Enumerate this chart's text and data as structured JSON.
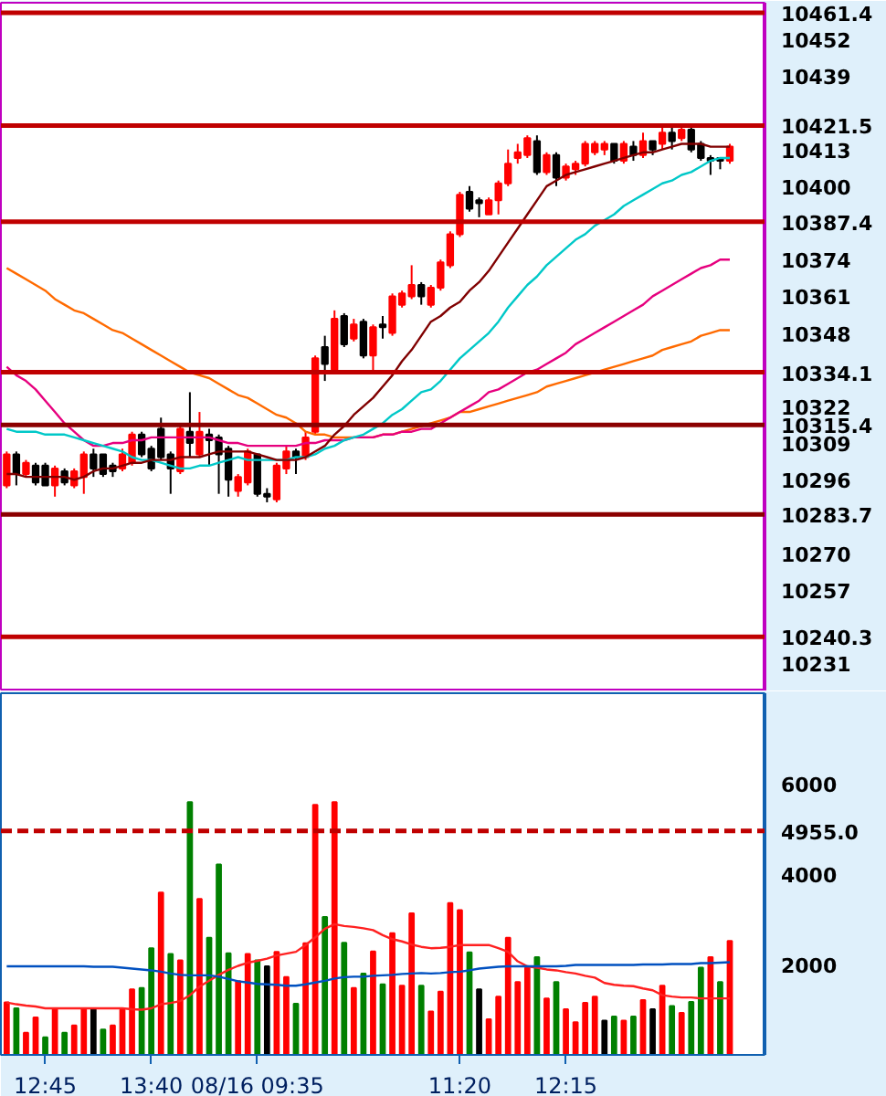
{
  "chart_data": [
    {
      "type": "candlestick",
      "categories": [
        null,
        null,
        null,
        null,
        null,
        null,
        null,
        null,
        null,
        null,
        null,
        null,
        null,
        null,
        null,
        null,
        null,
        null,
        null,
        null,
        null,
        null,
        null,
        null,
        null,
        null,
        null,
        null,
        null,
        null,
        null,
        null,
        null,
        null,
        null,
        null,
        null,
        null,
        null,
        null,
        null,
        null,
        null,
        null,
        null,
        null,
        null,
        null,
        null,
        null,
        null,
        null,
        null,
        null,
        null,
        null,
        null,
        null,
        null,
        null,
        null,
        null,
        null,
        null,
        null,
        null,
        null,
        null,
        null,
        null,
        null,
        null,
        null,
        null,
        null,
        null
      ],
      "ohlc": [
        [
          10294,
          10306,
          10293,
          10305
        ],
        [
          10305,
          10306,
          10294,
          10298
        ],
        [
          10298,
          10303,
          10297,
          10302
        ],
        [
          10301,
          10302,
          10294,
          10295
        ],
        [
          10301,
          10302,
          10294,
          10294
        ],
        [
          10294,
          10301,
          10290,
          10300
        ],
        [
          10299,
          10300,
          10294,
          10295
        ],
        [
          10294,
          10300,
          10293,
          10299
        ],
        [
          10297,
          10306,
          10291,
          10305
        ],
        [
          10305,
          10307,
          10297,
          10300
        ],
        [
          10305,
          10305,
          10297,
          10298
        ],
        [
          10301,
          10302,
          10297,
          10299
        ],
        [
          10300,
          10307,
          10299,
          10305
        ],
        [
          10302,
          10313,
          10301,
          10312
        ],
        [
          10312,
          10313,
          10304,
          10305
        ],
        [
          10307,
          10308,
          10299,
          10300
        ],
        [
          10314,
          10318,
          10303,
          10304
        ],
        [
          10305,
          10306,
          10291,
          10300
        ],
        [
          10299,
          10315,
          10298,
          10314
        ],
        [
          10313,
          10327,
          10304,
          10309
        ],
        [
          10305,
          10320,
          10304,
          10313
        ],
        [
          10312,
          10314,
          10301,
          10310
        ],
        [
          10311,
          10312,
          10291,
          10305
        ],
        [
          10307,
          10308,
          10290,
          10296
        ],
        [
          10292,
          10298,
          10290,
          10297
        ],
        [
          10295,
          10307,
          10294,
          10306
        ],
        [
          10305,
          10305,
          10290,
          10291
        ],
        [
          10291,
          10293,
          10288,
          10290
        ],
        [
          10289,
          10302,
          10288,
          10301
        ],
        [
          10300,
          10308,
          10298,
          10306
        ],
        [
          10306,
          10307,
          10298,
          10304
        ],
        [
          10304,
          10313,
          10303,
          10311
        ],
        [
          10313,
          10340,
          10312,
          10339
        ],
        [
          10343,
          10347,
          10331,
          10337
        ],
        [
          10335,
          10356,
          10334,
          10353
        ],
        [
          10354,
          10355,
          10343,
          10344
        ],
        [
          10346,
          10353,
          10345,
          10351
        ],
        [
          10352,
          10353,
          10339,
          10340
        ],
        [
          10340,
          10351,
          10334,
          10350
        ],
        [
          10351,
          10354,
          10346,
          10350
        ],
        [
          10348,
          10362,
          10347,
          10361
        ],
        [
          10358,
          10363,
          10357,
          10362
        ],
        [
          10361,
          10372,
          10360,
          10365
        ],
        [
          10365,
          10366,
          10358,
          10361
        ],
        [
          10358,
          10365,
          10357,
          10364
        ],
        [
          10364,
          10374,
          10363,
          10373
        ],
        [
          10372,
          10384,
          10371,
          10383
        ],
        [
          10383,
          10398,
          10382,
          10397
        ],
        [
          10398,
          10400,
          10391,
          10392
        ],
        [
          10395,
          10396,
          10389,
          10394
        ],
        [
          10390,
          10396,
          10390,
          10395
        ],
        [
          10395,
          10402,
          10390,
          10401
        ],
        [
          10401,
          10413,
          10400,
          10408
        ],
        [
          10410,
          10415,
          10408,
          10412
        ],
        [
          10411,
          10418,
          10410,
          10417
        ],
        [
          10416,
          10418,
          10404,
          10405
        ],
        [
          10405,
          10412,
          10404,
          10411
        ],
        [
          10411,
          10412,
          10400,
          10403
        ],
        [
          10403,
          10408,
          10402,
          10407
        ],
        [
          10406,
          10409,
          10404,
          10408
        ],
        [
          10408,
          10416,
          10407,
          10415
        ],
        [
          10412,
          10416,
          10411,
          10415
        ],
        [
          10413,
          10416,
          10411,
          10415
        ],
        [
          10415,
          10415,
          10408,
          10409
        ],
        [
          10409,
          10416,
          10408,
          10415
        ],
        [
          10414,
          10416,
          10409,
          10411
        ],
        [
          10411,
          10419,
          10410,
          10416
        ],
        [
          10416,
          10416,
          10411,
          10413
        ],
        [
          10415,
          10421,
          10413,
          10419
        ],
        [
          10419,
          10421,
          10413,
          10416
        ],
        [
          10417,
          10421,
          10416,
          10420
        ],
        [
          10420,
          10421,
          10412,
          10413
        ],
        [
          10415,
          10416,
          10409,
          10410
        ],
        [
          10410,
          10411,
          10404,
          10409
        ],
        [
          10410,
          10410,
          10406,
          10409
        ],
        [
          10409,
          10415,
          10408,
          10414
        ]
      ],
      "colors": [
        "#ff0000",
        "#000000",
        "#ff0000",
        "#000000",
        "#000000",
        "#ff0000",
        "#000000",
        "#ff0000",
        "#ff0000",
        "#000000",
        "#000000",
        "#000000",
        "#ff0000",
        "#ff0000",
        "#000000",
        "#000000",
        "#000000",
        "#000000",
        "#ff0000",
        "#000000",
        "#ff0000",
        "#000000",
        "#000000",
        "#000000",
        "#ff0000",
        "#ff0000",
        "#000000",
        "#000000",
        "#ff0000",
        "#ff0000",
        "#000000",
        "#ff0000",
        "#ff0000",
        "#000000",
        "#ff0000",
        "#000000",
        "#ff0000",
        "#000000",
        "#ff0000",
        "#000000",
        "#ff0000",
        "#ff0000",
        "#ff0000",
        "#000000",
        "#ff0000",
        "#ff0000",
        "#ff0000",
        "#ff0000",
        "#000000",
        "#000000",
        "#ff0000",
        "#ff0000",
        "#ff0000",
        "#ff0000",
        "#ff0000",
        "#000000",
        "#ff0000",
        "#000000",
        "#ff0000",
        "#ff0000",
        "#ff0000",
        "#ff0000",
        "#ff0000",
        "#000000",
        "#ff0000",
        "#000000",
        "#ff0000",
        "#000000",
        "#ff0000",
        "#000000",
        "#ff0000",
        "#000000",
        "#000000",
        "#000000",
        "#000000",
        "#ff0000"
      ],
      "series": [
        {
          "type": "line",
          "color": "#ff6a00",
          "values": [
            10371,
            10369,
            10367,
            10365,
            10363,
            10360,
            10358,
            10356,
            10355,
            10353,
            10351,
            10349,
            10348,
            10346,
            10344,
            10342,
            10340,
            10338,
            10336,
            10334,
            10333,
            10332,
            10330,
            10328,
            10326,
            10325,
            10323,
            10321,
            10319,
            10318,
            10316,
            10313,
            10312,
            10312,
            10311,
            10311,
            10311,
            10311,
            10311,
            10312,
            10312,
            10313,
            10314,
            10315,
            10316,
            10317,
            10318,
            10320,
            10320,
            10321,
            10322,
            10323,
            10324,
            10325,
            10326,
            10327,
            10329,
            10330,
            10331,
            10332,
            10333,
            10334,
            10335,
            10336,
            10337,
            10338,
            10339,
            10340,
            10342,
            10343,
            10344,
            10345,
            10347,
            10348,
            10349,
            10349
          ]
        },
        {
          "type": "line",
          "color": "#e6007e",
          "values": [
            10336,
            10333,
            10331,
            10328,
            10324,
            10320,
            10316,
            10313,
            10310,
            10308,
            10308,
            10309,
            10309,
            10310,
            10310,
            10311,
            10311,
            10311,
            10311,
            10311,
            10311,
            10311,
            10310,
            10309,
            10309,
            10308,
            10308,
            10308,
            10308,
            10308,
            10308,
            10309,
            10309,
            10310,
            10310,
            10310,
            10311,
            10311,
            10311,
            10312,
            10312,
            10313,
            10313,
            10314,
            10314,
            10316,
            10318,
            10320,
            10322,
            10324,
            10327,
            10328,
            10330,
            10332,
            10334,
            10335,
            10337,
            10339,
            10341,
            10344,
            10346,
            10348,
            10350,
            10352,
            10354,
            10356,
            10358,
            10361,
            10363,
            10365,
            10367,
            10369,
            10371,
            10372,
            10374,
            10374
          ]
        },
        {
          "type": "line",
          "color": "#00c8c8",
          "values": [
            10314,
            10313,
            10313,
            10313,
            10312,
            10312,
            10312,
            10311,
            10310,
            10309,
            10308,
            10307,
            10306,
            10304,
            10303,
            10303,
            10302,
            10301,
            10300,
            10300,
            10301,
            10301,
            10302,
            10303,
            10304,
            10303,
            10303,
            10303,
            10303,
            10303,
            10304,
            10304,
            10305,
            10307,
            10308,
            10310,
            10311,
            10312,
            10314,
            10316,
            10319,
            10321,
            10324,
            10327,
            10328,
            10331,
            10335,
            10339,
            10342,
            10345,
            10348,
            10352,
            10357,
            10361,
            10365,
            10368,
            10372,
            10375,
            10378,
            10381,
            10383,
            10386,
            10388,
            10390,
            10393,
            10395,
            10397,
            10399,
            10401,
            10402,
            10404,
            10405,
            10407,
            10409,
            10410,
            10410
          ]
        },
        {
          "type": "line",
          "color": "#800000",
          "values": [
            10298,
            10298,
            10297,
            10297,
            10297,
            10297,
            10297,
            10296,
            10297,
            10299,
            10300,
            10300,
            10301,
            10302,
            10302,
            10303,
            10303,
            10303,
            10304,
            10304,
            10304,
            10305,
            10306,
            10306,
            10306,
            10306,
            10305,
            10304,
            10303,
            10303,
            10303,
            10304,
            10306,
            10308,
            10312,
            10315,
            10319,
            10322,
            10325,
            10329,
            10333,
            10338,
            10342,
            10347,
            10352,
            10354,
            10357,
            10359,
            10363,
            10366,
            10370,
            10375,
            10380,
            10385,
            10390,
            10395,
            10400,
            10402,
            10404,
            10405,
            10406,
            10407,
            10408,
            10409,
            10410,
            10411,
            10412,
            10412,
            10413,
            10414,
            10415,
            10415,
            10415,
            10414,
            10414,
            10414
          ]
        }
      ],
      "ylim": [
        10221,
        10465
      ],
      "yticks": [
        10452,
        10439,
        10413,
        10400,
        10374,
        10361,
        10348,
        10322,
        10309,
        10296,
        10270,
        10257,
        10231
      ],
      "ref_lines": [
        {
          "axis": "y",
          "value": 10461.4,
          "label": "10461.4",
          "color": "#c00000"
        },
        {
          "axis": "y",
          "value": 10421.5,
          "label": "10421.5",
          "color": "#c00000"
        },
        {
          "axis": "y",
          "value": 10387.4,
          "label": "10387.4",
          "color": "#c00000"
        },
        {
          "axis": "y",
          "value": 10334.1,
          "label": "10334.1",
          "color": "#c00000"
        },
        {
          "axis": "y",
          "value": 10315.4,
          "label": "10315.4",
          "color": "#8b0000"
        },
        {
          "axis": "y",
          "value": 10283.7,
          "label": "10283.7",
          "color": "#8b0000"
        },
        {
          "axis": "y",
          "value": 10240.3,
          "label": "10240.3",
          "color": "#c00000"
        }
      ],
      "tick_labels": "y"
    },
    {
      "type": "bar",
      "categories": [
        null,
        null,
        null,
        null,
        "12:45",
        null,
        null,
        null,
        null,
        null,
        null,
        null,
        null,
        null,
        null,
        "13:40",
        null,
        null,
        null,
        null,
        null,
        null,
        null,
        null,
        null,
        null,
        "08/16 09:35",
        null,
        null,
        null,
        null,
        null,
        null,
        null,
        null,
        null,
        null,
        null,
        null,
        null,
        null,
        null,
        null,
        null,
        null,
        null,
        null,
        "11:20",
        null,
        null,
        null,
        null,
        null,
        null,
        null,
        null,
        null,
        null,
        "12:15",
        null,
        null,
        null,
        null,
        null,
        null,
        null,
        null,
        null,
        null,
        null,
        null,
        null,
        null,
        null,
        null,
        null
      ],
      "values": [
        1160,
        1030,
        490,
        830,
        390,
        1030,
        490,
        650,
        1030,
        1030,
        560,
        650,
        1000,
        1450,
        1480,
        2360,
        3590,
        2230,
        2090,
        5590,
        3450,
        2590,
        4210,
        2250,
        1630,
        2230,
        2090,
        1960,
        2280,
        1720,
        1130,
        2470,
        5530,
        3050,
        5590,
        2480,
        1480,
        1800,
        2290,
        1560,
        2690,
        1530,
        3130,
        1530,
        960,
        1400,
        3360,
        3200,
        2270,
        1450,
        790,
        1290,
        2590,
        1610,
        1930,
        2160,
        1250,
        1610,
        1010,
        720,
        1150,
        1290,
        760,
        850,
        760,
        850,
        1210,
        1010,
        1530,
        1080,
        930,
        1170,
        1930,
        2160,
        1610,
        2520
      ],
      "colors": [
        "#ff0000",
        "#008000",
        "#ff0000",
        "#ff0000",
        "#008000",
        "#ff0000",
        "#008000",
        "#ff0000",
        "#ff0000",
        "#000000",
        "#008000",
        "#ff0000",
        "#ff0000",
        "#ff0000",
        "#008000",
        "#008000",
        "#ff0000",
        "#008000",
        "#ff0000",
        "#008000",
        "#ff0000",
        "#008000",
        "#008000",
        "#008000",
        "#ff0000",
        "#ff0000",
        "#008000",
        "#000000",
        "#ff0000",
        "#ff0000",
        "#008000",
        "#ff0000",
        "#ff0000",
        "#008000",
        "#ff0000",
        "#008000",
        "#ff0000",
        "#008000",
        "#ff0000",
        "#008000",
        "#ff0000",
        "#ff0000",
        "#ff0000",
        "#008000",
        "#ff0000",
        "#ff0000",
        "#ff0000",
        "#ff0000",
        "#008000",
        "#000000",
        "#ff0000",
        "#ff0000",
        "#ff0000",
        "#ff0000",
        "#ff0000",
        "#008000",
        "#ff0000",
        "#008000",
        "#ff0000",
        "#ff0000",
        "#ff0000",
        "#ff0000",
        "#000000",
        "#008000",
        "#ff0000",
        "#008000",
        "#ff0000",
        "#000000",
        "#ff0000",
        "#008000",
        "#ff0000",
        "#008000",
        "#008000",
        "#ff0000",
        "#008000",
        "#ff0000"
      ],
      "series": [
        {
          "type": "line",
          "color": "#ff2020",
          "values": [
            1160,
            1120,
            1090,
            1070,
            1030,
            1030,
            1030,
            1030,
            1030,
            1030,
            1030,
            1030,
            1030,
            1010,
            1000,
            1030,
            1120,
            1150,
            1190,
            1320,
            1510,
            1640,
            1770,
            1880,
            1970,
            2040,
            2080,
            2130,
            2200,
            2240,
            2280,
            2430,
            2600,
            2790,
            2890,
            2850,
            2830,
            2800,
            2760,
            2650,
            2560,
            2510,
            2440,
            2390,
            2360,
            2370,
            2390,
            2430,
            2430,
            2430,
            2430,
            2360,
            2280,
            2070,
            1960,
            1930,
            1890,
            1870,
            1830,
            1800,
            1750,
            1710,
            1590,
            1550,
            1530,
            1520,
            1470,
            1430,
            1320,
            1290,
            1270,
            1270,
            1250,
            1250,
            1250,
            1250
          ]
        },
        {
          "type": "line",
          "color": "#0050c0",
          "values": [
            1960,
            1960,
            1960,
            1960,
            1960,
            1960,
            1960,
            1960,
            1960,
            1950,
            1950,
            1950,
            1930,
            1910,
            1890,
            1870,
            1840,
            1800,
            1770,
            1760,
            1760,
            1760,
            1730,
            1680,
            1630,
            1600,
            1570,
            1560,
            1550,
            1530,
            1530,
            1560,
            1600,
            1640,
            1690,
            1720,
            1730,
            1730,
            1750,
            1760,
            1770,
            1790,
            1800,
            1810,
            1800,
            1810,
            1830,
            1840,
            1870,
            1910,
            1930,
            1950,
            1960,
            1960,
            1960,
            1960,
            1960,
            1960,
            1970,
            1990,
            1990,
            1990,
            1990,
            1990,
            1990,
            1990,
            2000,
            2000,
            2000,
            2010,
            2010,
            2010,
            2030,
            2030,
            2040,
            2050
          ]
        }
      ],
      "ylim": [
        0,
        8000
      ],
      "yticks": [
        2000,
        4000,
        6000
      ],
      "ref_lines": [
        {
          "axis": "y",
          "value": 4955.0,
          "label": "4955.0",
          "color": "#c00000",
          "line_style": "dashed"
        }
      ]
    }
  ]
}
